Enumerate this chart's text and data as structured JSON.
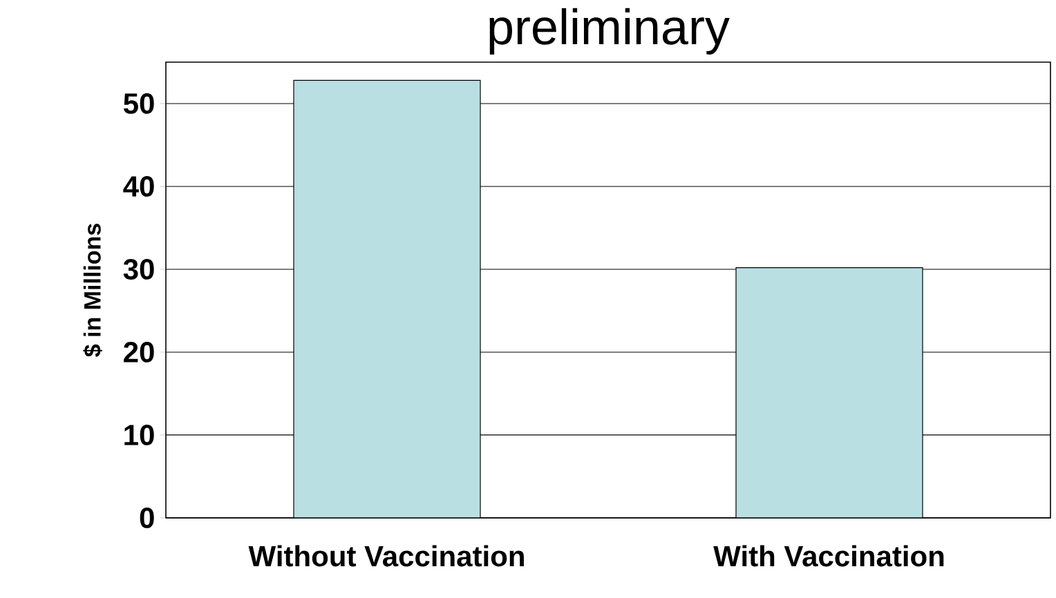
{
  "chart_data": {
    "type": "bar",
    "title": "preliminary",
    "ylabel": "$ in Millions",
    "categories": [
      "Without Vaccination",
      "With Vaccination"
    ],
    "values": [
      52.8,
      30.2
    ],
    "color": "#b9dfe3",
    "ylim": [
      0,
      55
    ],
    "yticks": [
      0,
      10,
      20,
      30,
      40,
      50
    ],
    "grid": "y"
  }
}
